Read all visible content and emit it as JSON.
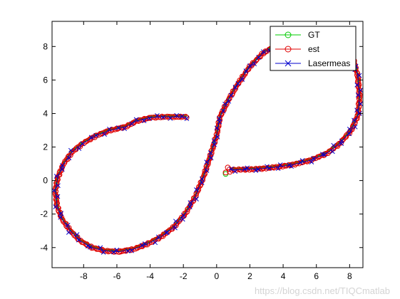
{
  "chart_data": {
    "type": "line",
    "title": "",
    "xlabel": "",
    "ylabel": "",
    "xlim": [
      -9.9,
      8.8
    ],
    "ylim": [
      -5.2,
      9.5
    ],
    "xticks": [
      -8,
      -6,
      -4,
      -2,
      0,
      2,
      4,
      6,
      8
    ],
    "yticks": [
      -4,
      -2,
      0,
      2,
      4,
      6,
      8
    ],
    "grid": false,
    "legend_position": "top-right",
    "series": [
      {
        "name": "GT",
        "color": "#00cc00",
        "marker": "circle",
        "role": "GT"
      },
      {
        "name": "est",
        "color": "#e00000",
        "marker": "circle",
        "role": "est"
      },
      {
        "name": "Lasermeas",
        "color": "#0000cc",
        "marker": "x",
        "role": "laser"
      }
    ],
    "path": [
      {
        "x": -1.8,
        "y": 3.8
      },
      {
        "x": -2.4,
        "y": 3.8
      },
      {
        "x": -3.2,
        "y": 3.8
      },
      {
        "x": -4.0,
        "y": 3.75
      },
      {
        "x": -4.8,
        "y": 3.55
      },
      {
        "x": -5.5,
        "y": 3.2
      },
      {
        "x": -6.4,
        "y": 3.0
      },
      {
        "x": -7.2,
        "y": 2.7
      },
      {
        "x": -8.0,
        "y": 2.25
      },
      {
        "x": -8.7,
        "y": 1.7
      },
      {
        "x": -9.2,
        "y": 1.0
      },
      {
        "x": -9.55,
        "y": 0.2
      },
      {
        "x": -9.7,
        "y": -0.6
      },
      {
        "x": -9.6,
        "y": -1.5
      },
      {
        "x": -9.3,
        "y": -2.3
      },
      {
        "x": -8.8,
        "y": -3.0
      },
      {
        "x": -8.2,
        "y": -3.6
      },
      {
        "x": -7.5,
        "y": -4.0
      },
      {
        "x": -6.7,
        "y": -4.2
      },
      {
        "x": -5.9,
        "y": -4.25
      },
      {
        "x": -5.0,
        "y": -4.1
      },
      {
        "x": -4.2,
        "y": -3.8
      },
      {
        "x": -3.4,
        "y": -3.4
      },
      {
        "x": -2.6,
        "y": -2.8
      },
      {
        "x": -1.9,
        "y": -2.0
      },
      {
        "x": -1.3,
        "y": -1.0
      },
      {
        "x": -0.8,
        "y": 0.2
      },
      {
        "x": -0.4,
        "y": 1.4
      },
      {
        "x": 0.0,
        "y": 2.7
      },
      {
        "x": 0.2,
        "y": 3.8
      },
      {
        "x": 0.7,
        "y": 4.8
      },
      {
        "x": 1.3,
        "y": 5.8
      },
      {
        "x": 2.0,
        "y": 6.8
      },
      {
        "x": 2.8,
        "y": 7.6
      },
      {
        "x": 3.6,
        "y": 8.1
      },
      {
        "x": 4.6,
        "y": 8.5
      },
      {
        "x": 5.6,
        "y": 8.7
      },
      {
        "x": 6.6,
        "y": 8.6
      },
      {
        "x": 7.5,
        "y": 8.2
      },
      {
        "x": 8.2,
        "y": 7.3
      },
      {
        "x": 8.5,
        "y": 6.2
      },
      {
        "x": 8.6,
        "y": 5.0
      },
      {
        "x": 8.5,
        "y": 3.9
      },
      {
        "x": 8.1,
        "y": 3.0
      },
      {
        "x": 7.4,
        "y": 2.2
      },
      {
        "x": 6.6,
        "y": 1.6
      },
      {
        "x": 5.6,
        "y": 1.2
      },
      {
        "x": 4.6,
        "y": 0.95
      },
      {
        "x": 3.6,
        "y": 0.8
      },
      {
        "x": 2.6,
        "y": 0.7
      },
      {
        "x": 1.6,
        "y": 0.65
      },
      {
        "x": 0.8,
        "y": 0.65
      }
    ]
  },
  "watermark": "https://blog.csdn.net/TIQCmatlab"
}
